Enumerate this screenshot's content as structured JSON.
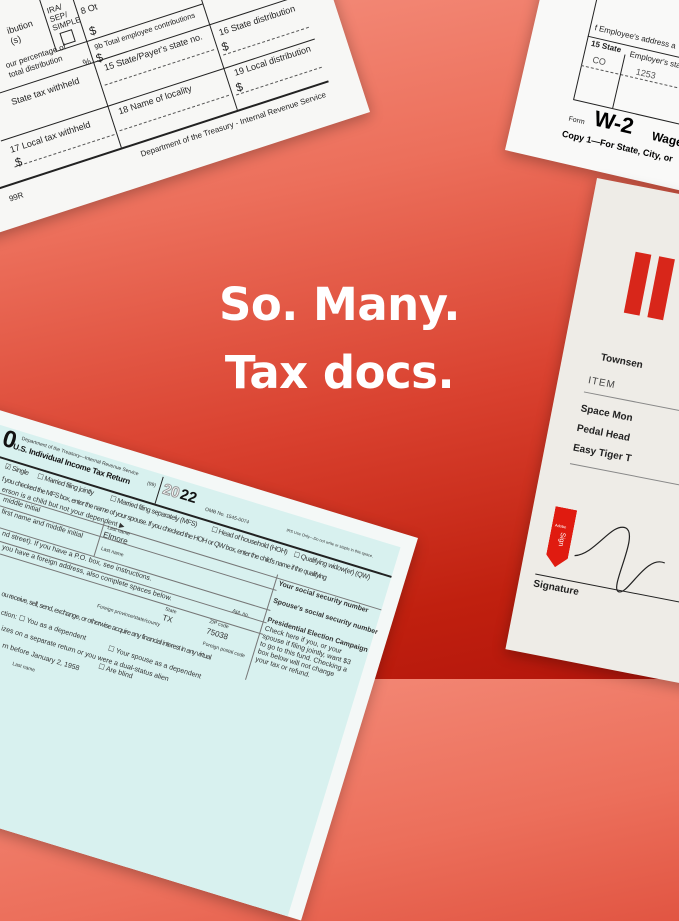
{
  "headline": {
    "line1": "So. Many.",
    "line2": "Tax docs."
  },
  "colors": {
    "background_top": "#f5907e",
    "background_bottom": "#b3150b",
    "accent_red": "#d8261a",
    "form_cyan": "#d8f1ef"
  },
  "form_1099r": {
    "box8": "8 Ot",
    "ira_sep_simple": "IRA/ SEP/ SIMPLE",
    "distribution": "ibution (s)",
    "dollar": "$",
    "box9b": "9b Total employee contributions",
    "box16": "16 State distribution",
    "percentage": "our percentage of total distribution",
    "percent": "%",
    "box15": "15 State/Payer's state no.",
    "box19": "19 Local distribution",
    "state_tax": "State tax withheld",
    "box18": "18 Name of locality",
    "box17": "17 Local tax withheld",
    "footer": "Department of the Treasury - Internal Revenue Service",
    "form_id": "99R"
  },
  "form_w2": {
    "employee_address": "f Employee's address a",
    "box15": "15 State",
    "employer_state": "Employer's sta",
    "state_value": "CO",
    "state_no_value": "1253",
    "form_label": "Form",
    "form_name": "W-2",
    "title": "Wage",
    "copy": "Copy 1—For State, City, or"
  },
  "invoice": {
    "company": "Townsen",
    "column_item": "ITEM",
    "items": [
      "Space Mon",
      "Pedal Head",
      "Easy Tiger T"
    ],
    "sign_brand": "Adobe",
    "sign_label": "Sign",
    "signature_label": "Signature"
  },
  "form_1040": {
    "form_number": "0",
    "department": "Department of the Treasury—Internal Revenue Service",
    "title": "U.S. Individual Income Tax Return",
    "code": "(99)",
    "year_light": "20",
    "year_bold": "22",
    "omb": "OMB No. 1545-0074",
    "irs_use": "IRS Use Only—Do not write or staple in this space.",
    "status_single": "Single",
    "status_mfj": "Married filing jointly",
    "status_mfs": "Married filing separately (MFS)",
    "status_hoh": "Head of household (HOH)",
    "status_qw": "Qualifying widow(er) (QW)",
    "mfs_note": "f you checked the MFS box, enter the name of your spouse. If you checked the HOH or QW box, enter the child's name if the qualifying",
    "child_note": "erson is a child but not your dependent ▶",
    "middle_initial": "middle initial",
    "first_name": "first name and middle initial",
    "last_name_label": "Last name",
    "last_name_value": "Elmore",
    "last_name_label2": "Last name",
    "address_note": "nd street). If you have a P.O. box, see instructions.",
    "foreign_note": "you have a foreign address, also complete spaces below.",
    "ssn": "Your social security number",
    "spouse_ssn": "Spouse's social security number",
    "foreign_province": "Foreign province/state/county",
    "state_label": "State",
    "state_value": "TX",
    "apt": "Apt. no.",
    "zip_label": "ZIP code",
    "zip_value": "75038",
    "foreign_postal": "Foreign postal code",
    "campaign_title": "Presidential Election Campaign",
    "campaign_text": [
      "Check here if you, or your",
      "spouse if filing jointly, want $3",
      "to go to this fund. Checking a",
      "box below will not change",
      "your tax or refund."
    ],
    "virtual": "ou receive, sell, send, exchange, or otherwise acquire any financial interest in any virtual",
    "dependent": "ction: ",
    "you_dependent": "You as a dependent",
    "spouse_dependent": "Your spouse as a dependent",
    "separate_return": "izes on a separate return or you were a dual-status alien",
    "born": "rn before January 2, 1958",
    "blind": "Are blind",
    "last_name_bottom": "Last name"
  }
}
